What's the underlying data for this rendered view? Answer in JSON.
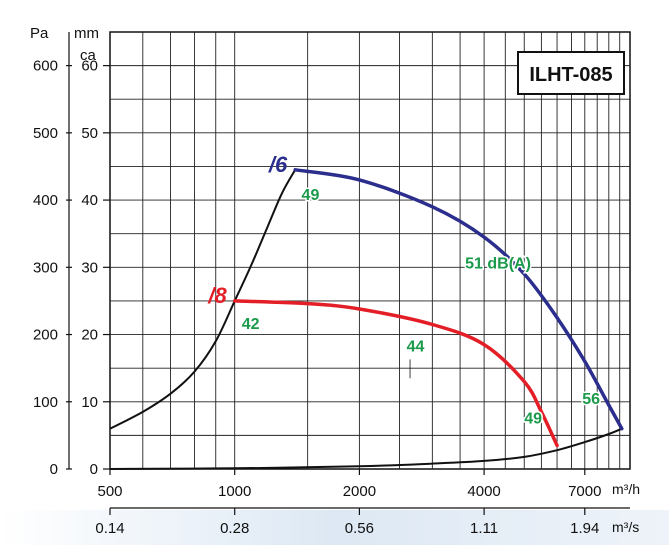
{
  "chart_data": {
    "type": "line",
    "title": "ILHT-085",
    "y_left_unit": "Pa",
    "y_mid_unit_line1": "mm",
    "y_mid_unit_line2": "ca",
    "x_unit_top": "m³/h",
    "x_unit_bottom": "m³/s",
    "x_scale": "log",
    "xlim": [
      500,
      9000
    ],
    "ylim": [
      0,
      650
    ],
    "y_ticks_pa": [
      "0",
      "100",
      "200",
      "300",
      "400",
      "500",
      "600"
    ],
    "y_ticks_mmca": [
      "0",
      "10",
      "20",
      "30",
      "40",
      "50",
      "60"
    ],
    "x_ticks_top": [
      {
        "label": "500",
        "value": 500
      },
      {
        "label": "1000",
        "value": 1000
      },
      {
        "label": "2000",
        "value": 2000
      },
      {
        "label": "4000",
        "value": 4000
      },
      {
        "label": "7000",
        "value": 7000
      }
    ],
    "x_ticks_bottom": [
      {
        "label": "0.14",
        "value": 500
      },
      {
        "label": "0.28",
        "value": 1000
      },
      {
        "label": "0.56",
        "value": 2000
      },
      {
        "label": "1.11",
        "value": 4000
      },
      {
        "label": "1.94",
        "value": 7000
      }
    ],
    "series": [
      {
        "name": "/6",
        "color": "#2b2e8c",
        "points": [
          [
            1400,
            445
          ],
          [
            2000,
            430
          ],
          [
            3000,
            390
          ],
          [
            4000,
            345
          ],
          [
            5000,
            290
          ],
          [
            6000,
            225
          ],
          [
            7000,
            160
          ],
          [
            8000,
            95
          ],
          [
            8600,
            60
          ]
        ]
      },
      {
        "name": "/8",
        "color": "#e41e26",
        "points": [
          [
            1000,
            250
          ],
          [
            1500,
            246
          ],
          [
            2000,
            238
          ],
          [
            3000,
            215
          ],
          [
            4000,
            185
          ],
          [
            5000,
            130
          ],
          [
            5500,
            85
          ],
          [
            6000,
            35
          ]
        ]
      }
    ],
    "system_curves": [
      {
        "color": "#111111",
        "points": [
          [
            500,
            60
          ],
          [
            600,
            85
          ],
          [
            700,
            112
          ],
          [
            800,
            145
          ],
          [
            900,
            190
          ],
          [
            1000,
            250
          ],
          [
            1100,
            305
          ],
          [
            1200,
            360
          ],
          [
            1300,
            410
          ],
          [
            1400,
            445
          ]
        ]
      },
      {
        "color": "#111111",
        "points": [
          [
            500,
            0
          ],
          [
            1000,
            1
          ],
          [
            2000,
            4
          ],
          [
            3000,
            8
          ],
          [
            4000,
            12
          ],
          [
            5000,
            18
          ],
          [
            6000,
            28
          ],
          [
            7000,
            40
          ],
          [
            8000,
            52
          ],
          [
            8600,
            60
          ]
        ]
      }
    ],
    "annotations": [
      {
        "text": "49",
        "x": 1450,
        "y": 400,
        "color": "#1a9a4a"
      },
      {
        "text": "51 dB(A)",
        "x": 3600,
        "y": 298,
        "color": "#1a9a4a"
      },
      {
        "text": "42",
        "x": 1040,
        "y": 208,
        "color": "#1a9a4a"
      },
      {
        "text": "44",
        "x": 2600,
        "y": 175,
        "color": "#1a9a4a"
      },
      {
        "text": "49",
        "x": 5000,
        "y": 68,
        "color": "#1a9a4a"
      },
      {
        "text": "56",
        "x": 6900,
        "y": 97,
        "color": "#1a9a4a"
      }
    ]
  }
}
